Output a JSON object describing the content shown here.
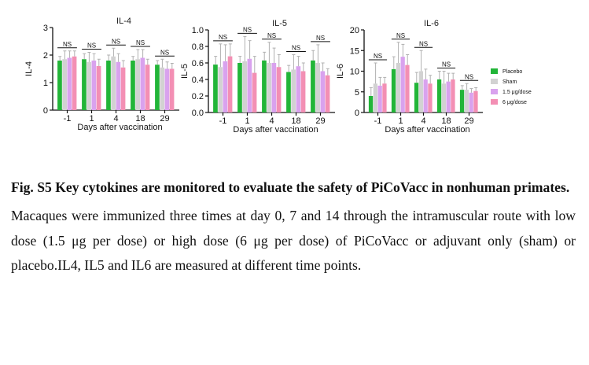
{
  "chart_data": [
    {
      "type": "bar",
      "title": "IL-4",
      "ylabel": "IL-4",
      "xlabel": "Days after vaccination",
      "categories": [
        "-1",
        "1",
        "4",
        "18",
        "29"
      ],
      "ylim": [
        0,
        3
      ],
      "yticks": [
        "0",
        "1",
        "2",
        "3"
      ],
      "significance": [
        "NS",
        "NS",
        "NS",
        "NS",
        "NS"
      ],
      "series": [
        {
          "name": "Placebo",
          "values": [
            1.8,
            1.85,
            1.8,
            1.8,
            1.65
          ],
          "errors": [
            0.15,
            0.2,
            0.2,
            0.15,
            0.15
          ]
        },
        {
          "name": "Sham",
          "values": [
            1.85,
            1.75,
            1.95,
            1.85,
            1.55
          ],
          "errors": [
            0.3,
            0.35,
            0.3,
            0.35,
            0.3
          ]
        },
        {
          "name": "1.5 μg/dose",
          "values": [
            1.9,
            1.8,
            1.75,
            1.9,
            1.5
          ],
          "errors": [
            0.25,
            0.25,
            0.3,
            0.3,
            0.25
          ]
        },
        {
          "name": "6 μg/dose",
          "values": [
            1.95,
            1.6,
            1.55,
            1.65,
            1.5
          ],
          "errors": [
            0.2,
            0.25,
            0.25,
            0.2,
            0.2
          ]
        }
      ]
    },
    {
      "type": "bar",
      "title": "IL-5",
      "ylabel": "IL-5",
      "xlabel": "Days after vaccination",
      "categories": [
        "-1",
        "1",
        "4",
        "18",
        "29"
      ],
      "ylim": [
        0,
        1.0
      ],
      "yticks": [
        "0.0",
        "0.2",
        "0.4",
        "0.6",
        "0.8",
        "1.0"
      ],
      "significance": [
        "NS",
        "NS",
        "NS",
        "NS",
        "NS"
      ],
      "series": [
        {
          "name": "Placebo",
          "values": [
            0.58,
            0.6,
            0.63,
            0.49,
            0.63
          ],
          "errors": [
            0.1,
            0.08,
            0.1,
            0.08,
            0.12
          ]
        },
        {
          "name": "Sham",
          "values": [
            0.55,
            0.62,
            0.6,
            0.52,
            0.6
          ],
          "errors": [
            0.28,
            0.3,
            0.25,
            0.18,
            0.22
          ]
        },
        {
          "name": "1.5 μg/dose",
          "values": [
            0.62,
            0.65,
            0.6,
            0.56,
            0.5
          ],
          "errors": [
            0.2,
            0.22,
            0.18,
            0.12,
            0.1
          ]
        },
        {
          "name": "6 μg/dose",
          "values": [
            0.68,
            0.48,
            0.55,
            0.5,
            0.45
          ],
          "errors": [
            0.15,
            0.2,
            0.15,
            0.1,
            0.08
          ]
        }
      ]
    },
    {
      "type": "bar",
      "title": "IL-6",
      "ylabel": "IL-6",
      "xlabel": "Days after vaccination",
      "categories": [
        "-1",
        "1",
        "4",
        "18",
        "29"
      ],
      "ylim": [
        0,
        20
      ],
      "yticks": [
        "0",
        "5",
        "10",
        "15",
        "20"
      ],
      "significance": [
        "NS",
        "NS",
        "NS",
        "NS",
        "NS"
      ],
      "series": [
        {
          "name": "Placebo",
          "values": [
            4.0,
            10.5,
            7.2,
            8.0,
            5.5
          ],
          "errors": [
            2.0,
            3.0,
            2.5,
            2.0,
            1.0
          ]
        },
        {
          "name": "Sham",
          "values": [
            7.0,
            12.0,
            10.0,
            7.0,
            5.5
          ],
          "errors": [
            5.0,
            5.0,
            5.0,
            3.0,
            1.5
          ]
        },
        {
          "name": "1.5 μg/dose",
          "values": [
            6.5,
            13.5,
            8.0,
            7.5,
            4.8
          ],
          "errors": [
            2.0,
            3.0,
            2.5,
            2.0,
            1.0
          ]
        },
        {
          "name": "6 μg/dose",
          "values": [
            7.0,
            11.5,
            7.0,
            8.0,
            5.2
          ],
          "errors": [
            1.5,
            2.5,
            2.0,
            1.5,
            0.8
          ]
        }
      ]
    }
  ],
  "legend": [
    {
      "label": "Placebo",
      "color": "#22b538"
    },
    {
      "label": "Sham",
      "color": "#d2d2d2"
    },
    {
      "label": "1.5 μg/dose",
      "color": "#d9a2ee"
    },
    {
      "label": "6 μg/dose",
      "color": "#f38fb4"
    }
  ],
  "colors": {
    "placebo": "#22b538",
    "sham": "#d2d2d2",
    "low_dose": "#d9a2ee",
    "high_dose": "#f38fb4",
    "error": "#b0b0b0",
    "axis": "#111111"
  },
  "caption": {
    "title": "Fig. S5 Key cytokines are monitored to evaluate the safety of PiCoVacc in nonhuman primates.",
    "body": "Macaques were immunized three times at day 0, 7 and 14 through the intramuscular route with low dose (1.5 μg per dose) or high dose (6 μg per dose) of PiCoVacc or adjuvant only (sham) or placebo.IL4, IL5 and IL6 are measured at different time points."
  }
}
